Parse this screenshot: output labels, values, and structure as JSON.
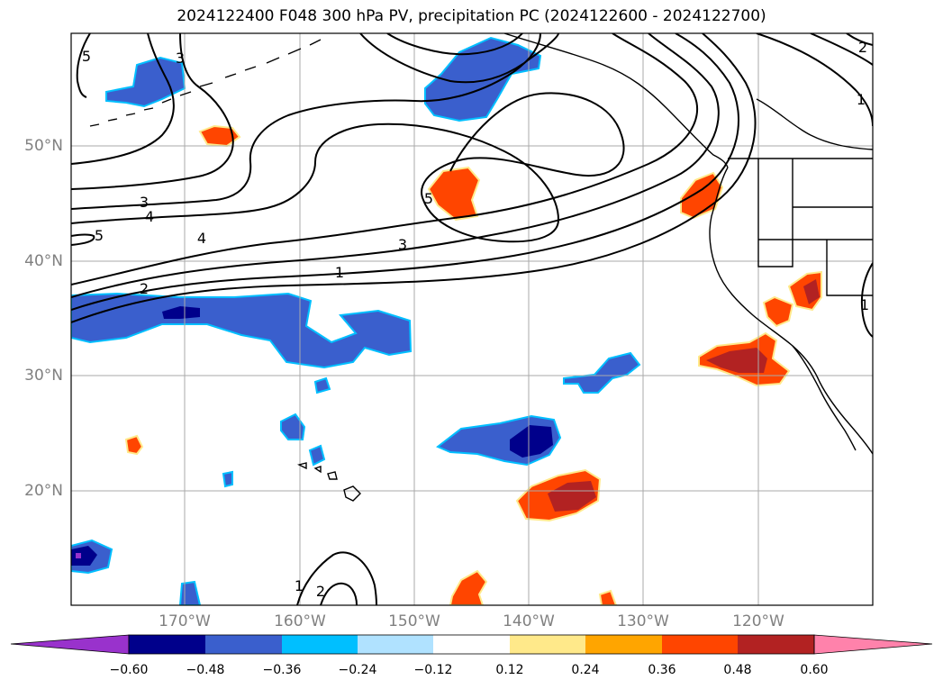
{
  "title": "2024122400 F048 300 hPa PV, precipitation PC (2024122600 - 2024122700)",
  "lat_labels": [
    "50°N",
    "40°N",
    "30°N",
    "20°N"
  ],
  "lon_labels": [
    "170°W",
    "160°W",
    "150°W",
    "140°W",
    "130°W",
    "120°W"
  ],
  "colorbar": {
    "ticks": [
      "−0.60",
      "−0.48",
      "−0.36",
      "−0.24",
      "−0.12",
      "0.12",
      "0.24",
      "0.36",
      "0.48",
      "0.60"
    ],
    "colors": [
      "#9932cc",
      "#00008b",
      "#3a5fcd",
      "#00bfff",
      "#b0e2ff",
      "#ffffff",
      "#ffe98a",
      "#ffa500",
      "#ff4500",
      "#b22222",
      "#ff82ab"
    ]
  },
  "contour_labels": [
    "5",
    "3",
    "3",
    "4",
    "5",
    "4",
    "3",
    "1",
    "2",
    "5",
    "1",
    "1",
    "1",
    "2",
    "2"
  ]
}
